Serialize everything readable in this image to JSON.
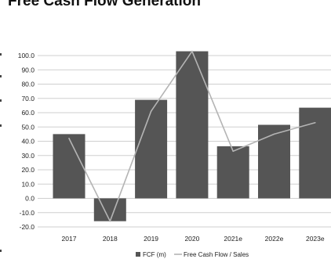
{
  "chart_data": {
    "type": "bar",
    "title": "Free Cash Flow Generation",
    "categories": [
      "2017",
      "2018",
      "2019",
      "2020",
      "2021e",
      "2022e",
      "2023e"
    ],
    "series": [
      {
        "name": "FCF (m)",
        "kind": "bar",
        "axis": "left",
        "color": "#555555",
        "values": [
          45.0,
          -16.0,
          69.0,
          103.0,
          36.5,
          51.5,
          63.5
        ]
      },
      {
        "name": "Free Cash Flow / Sales",
        "kind": "line",
        "axis": "right",
        "color": "#b4b4b4",
        "values": [
          42,
          -16,
          61,
          103,
          33,
          45,
          53
        ]
      }
    ],
    "y_ticks": [
      "100.0",
      "90.0",
      "80.0",
      "70.0",
      "60.0",
      "50.0",
      "40.0",
      "30.0",
      "20.0",
      "10.0",
      "0.0",
      "-10.0",
      "-20.0"
    ],
    "ylim": [
      -20,
      100
    ],
    "grid": true,
    "legend_position": "bottom"
  }
}
